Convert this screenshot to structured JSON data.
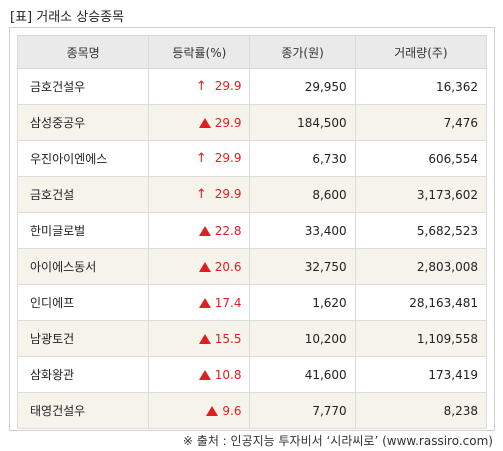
{
  "title": "[표] 거래소 상승종목",
  "columns": [
    "종목명",
    "등락률(%)",
    "종가(원)",
    "거래량(주)"
  ],
  "rows": [
    {
      "name": "금호건설우",
      "indicator": "up-arrow",
      "rate": "29.9",
      "close": "29,950",
      "volume": "16,362"
    },
    {
      "name": "삼성중공우",
      "indicator": "up-triangle",
      "rate": "29.9",
      "close": "184,500",
      "volume": "7,476"
    },
    {
      "name": "우진아이엔에스",
      "indicator": "up-arrow",
      "rate": "29.9",
      "close": "6,730",
      "volume": "606,554"
    },
    {
      "name": "금호건설",
      "indicator": "up-arrow",
      "rate": "29.9",
      "close": "8,600",
      "volume": "3,173,602"
    },
    {
      "name": "한미글로벌",
      "indicator": "up-triangle",
      "rate": "22.8",
      "close": "33,400",
      "volume": "5,682,523"
    },
    {
      "name": "아이에스동서",
      "indicator": "up-triangle",
      "rate": "20.6",
      "close": "32,750",
      "volume": "2,803,008"
    },
    {
      "name": "인디에프",
      "indicator": "up-triangle",
      "rate": "17.4",
      "close": "1,620",
      "volume": "28,163,481"
    },
    {
      "name": "남광토건",
      "indicator": "up-triangle",
      "rate": "15.5",
      "close": "10,200",
      "volume": "1,109,558"
    },
    {
      "name": "삼화왕관",
      "indicator": "up-triangle",
      "rate": "10.8",
      "close": "41,600",
      "volume": "173,419"
    },
    {
      "name": "태영건설우",
      "indicator": "up-triangle",
      "rate": "9.6",
      "close": "7,770",
      "volume": "8,238"
    }
  ],
  "source": "※ 출처 : 인공지능 투자비서 ‘시라씨로’ (www.rassiro.com)",
  "colors": {
    "up": "#e02020",
    "alt_row": "#f6f3ea",
    "header": "#eaeaea"
  }
}
